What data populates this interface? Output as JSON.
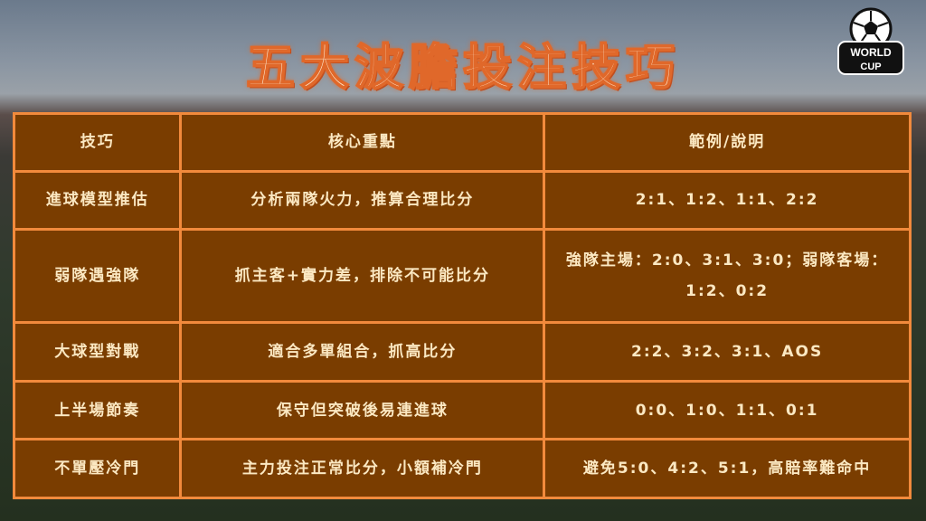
{
  "title": "五大波膽投注技巧",
  "logo": {
    "text_top": "WORLD",
    "text_bottom": "CUP",
    "icon": "soccer-ball-icon"
  },
  "table": {
    "headers": [
      "技巧",
      "核心重點",
      "範例/說明"
    ],
    "rows": [
      [
        "進球模型推估",
        "分析兩隊火力，推算合理比分",
        "2:1、1:2、1:1、2:2"
      ],
      [
        "弱隊遇強隊",
        "抓主客+實力差，排除不可能比分",
        "強隊主場：2:0、3:1、3:0；弱隊客場：1:2、0:2"
      ],
      [
        "大球型對戰",
        "適合多單組合，抓高比分",
        "2:2、3:2、3:1、AOS"
      ],
      [
        "上半場節奏",
        "保守但突破後易連進球",
        "0:0、1:0、1:1、0:1"
      ],
      [
        "不單壓冷門",
        "主力投注正常比分，小額補冷門",
        "避免5:0、4:2、5:1，高賠率難命中"
      ]
    ]
  },
  "colors": {
    "table_bg": "#7a3d00",
    "border": "#f28a3c",
    "text": "#fbe8c2"
  }
}
